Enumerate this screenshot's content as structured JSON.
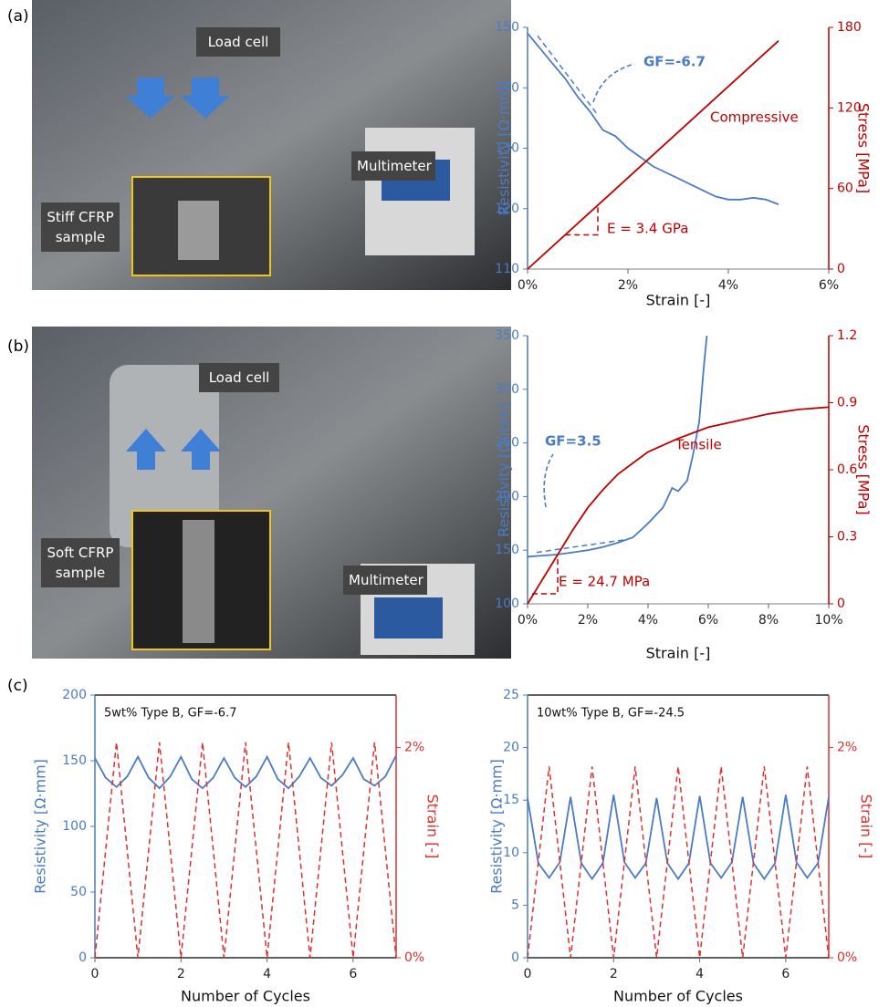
{
  "panels": {
    "labels": [
      "(a)",
      "(b)",
      "(c)"
    ],
    "photo_a": {
      "load_cell": "Load cell",
      "multimeter": "Multimeter",
      "sample": "Stiff CFRP sample"
    },
    "photo_b": {
      "load_cell": "Load cell",
      "multimeter": "Multimeter",
      "sample": "Soft CFRP sample"
    }
  },
  "chart_data": [
    {
      "type": "line",
      "xlabel": "Strain [-]",
      "ylabel": "Resistivity [Ω·mm]",
      "y2label": "Stress [MPa]",
      "xlim": [
        0,
        6
      ],
      "xticks": [
        {
          "value": 0,
          "label": "0%"
        },
        {
          "value": 2,
          "label": "2%"
        },
        {
          "value": 4,
          "label": "4%"
        },
        {
          "value": 6,
          "label": "6%"
        }
      ],
      "ylim": [
        110,
        150
      ],
      "yticks": [
        110,
        120,
        130,
        140,
        150
      ],
      "y2lim": [
        0,
        180
      ],
      "y2ticks": [
        0,
        60,
        120,
        180
      ],
      "annotations": [
        "GF=-6.7",
        "Compressive",
        "E = 3.4 GPa"
      ],
      "series": [
        {
          "color": "#4a7bc4",
          "axis": "y",
          "x": [
            0,
            0.25,
            0.5,
            0.75,
            1,
            1.25,
            1.5,
            1.75,
            2,
            2.25,
            2.5,
            2.75,
            3,
            3.25,
            3.5,
            3.75,
            4,
            4.25,
            4.5,
            4.75,
            5
          ],
          "values": [
            149,
            146.5,
            144,
            141.5,
            138.5,
            136,
            133,
            132,
            130,
            128.5,
            127,
            126,
            125,
            124,
            123,
            122,
            121.5,
            121.5,
            121.8,
            121.5,
            120.7
          ]
        },
        {
          "color": "#c00000",
          "axis": "y2",
          "x": [
            0,
            5
          ],
          "values": [
            0,
            170
          ]
        },
        {
          "color": "#4a7bc4",
          "axis": "y",
          "dash": true,
          "x": [
            0.2,
            1.4
          ],
          "values": [
            148.6,
            135.5
          ]
        },
        {
          "color": "#c00000",
          "axis": "y2",
          "dash": true,
          "x": [
            0.75,
            1.4,
            1.4
          ],
          "values": [
            25.5,
            25.5,
            47.6
          ]
        }
      ]
    },
    {
      "type": "line",
      "xlabel": "Strain [-]",
      "ylabel": "Resistivity [Ω·mm]",
      "y2label": "Stress [MPa]",
      "xlim": [
        0,
        10
      ],
      "xticks": [
        {
          "value": 0,
          "label": "0%"
        },
        {
          "value": 2,
          "label": "2%"
        },
        {
          "value": 4,
          "label": "4%"
        },
        {
          "value": 6,
          "label": "6%"
        },
        {
          "value": 8,
          "label": "8%"
        },
        {
          "value": 10,
          "label": "10%"
        }
      ],
      "ylim": [
        100,
        350
      ],
      "yticks": [
        100,
        150,
        200,
        250,
        300,
        350
      ],
      "y2lim": [
        0,
        1.2
      ],
      "y2ticks": [
        0,
        0.3,
        0.6,
        0.9,
        1.2
      ],
      "annotations": [
        "GF=3.5",
        "Tensile",
        "E = 24.7 MPa"
      ],
      "series": [
        {
          "color": "#4a7bc4",
          "axis": "y",
          "x": [
            0,
            0.5,
            1,
            1.5,
            2,
            2.5,
            3,
            3.5,
            4,
            4.5,
            4.8,
            5,
            5.3,
            5.5,
            5.7,
            5.85,
            5.95
          ],
          "values": [
            144,
            145,
            146,
            148,
            150,
            153,
            157,
            162,
            175,
            190,
            208,
            205,
            215,
            240,
            270,
            320,
            350
          ]
        },
        {
          "color": "#c00000",
          "axis": "y2",
          "x": [
            0,
            0.5,
            1,
            1.5,
            2,
            2.5,
            3,
            3.5,
            4,
            5,
            6,
            7,
            8,
            9,
            10
          ],
          "values": [
            0,
            0.11,
            0.22,
            0.33,
            0.43,
            0.51,
            0.58,
            0.63,
            0.68,
            0.74,
            0.79,
            0.82,
            0.85,
            0.87,
            0.88
          ]
        },
        {
          "color": "#4a7bc4",
          "axis": "y",
          "dash": true,
          "x": [
            0.3,
            3.3
          ],
          "values": [
            148,
            160
          ]
        },
        {
          "color": "#c00000",
          "axis": "y2",
          "dash": true,
          "x": [
            0.15,
            1,
            1
          ],
          "values": [
            0.045,
            0.045,
            0.21
          ]
        }
      ]
    },
    {
      "type": "line",
      "title": "5wt% Type B, GF=-6.7",
      "xlabel": "Number of Cycles",
      "ylabel": "Resistivity [Ω·mm]",
      "y2label": "Strain [-]",
      "xlim": [
        0,
        7
      ],
      "xticks": [
        0,
        2,
        4,
        6
      ],
      "ylim": [
        0,
        200
      ],
      "yticks": [
        0,
        50,
        100,
        150,
        200
      ],
      "y2lim": [
        0,
        2.5
      ],
      "y2ticks": [
        {
          "value": 0,
          "label": "0%"
        },
        {
          "value": 2,
          "label": "2%"
        }
      ],
      "series": [
        {
          "color": "#4a7bc4",
          "axis": "y",
          "x": [
            0,
            0.25,
            0.5,
            0.75,
            1,
            1.25,
            1.5,
            1.75,
            2,
            2.25,
            2.5,
            2.75,
            3,
            3.25,
            3.5,
            3.75,
            4,
            4.25,
            4.5,
            4.75,
            5,
            5.25,
            5.5,
            5.75,
            6,
            6.25,
            6.5,
            6.75,
            7
          ],
          "values": [
            152,
            137,
            130,
            138,
            153,
            137,
            129,
            138,
            153,
            136,
            129,
            137,
            152,
            137,
            130,
            138,
            153,
            136,
            129,
            138,
            152,
            137,
            131,
            139,
            152,
            136,
            131,
            138,
            154
          ]
        },
        {
          "color": "#e03030",
          "axis": "y2",
          "dash": true,
          "x": [
            0,
            0.5,
            1,
            1.5,
            2,
            2.5,
            3,
            3.5,
            4,
            4.5,
            5,
            5.5,
            6,
            6.5,
            7
          ],
          "values": [
            0,
            2.05,
            0,
            2.05,
            0,
            2.05,
            0,
            2.05,
            0,
            2.05,
            0,
            2.05,
            0,
            2.05,
            0
          ]
        }
      ]
    },
    {
      "type": "line",
      "title": "10wt% Type B, GF=-24.5",
      "xlabel": "Number of Cycles",
      "ylabel": "Resistivity [Ω·mm]",
      "y2label": "Strain [-]",
      "xlim": [
        0,
        7
      ],
      "xticks": [
        0,
        2,
        4,
        6
      ],
      "ylim": [
        0,
        25
      ],
      "yticks": [
        0,
        5,
        10,
        15,
        20,
        25
      ],
      "y2lim": [
        0,
        2.5
      ],
      "y2ticks": [
        {
          "value": 0,
          "label": "0%"
        },
        {
          "value": 2,
          "label": "2%"
        }
      ],
      "series": [
        {
          "color": "#4a7bc4",
          "axis": "y",
          "x": [
            0,
            0.25,
            0.5,
            0.75,
            1,
            1.25,
            1.5,
            1.75,
            2,
            2.25,
            2.5,
            2.75,
            3,
            3.25,
            3.5,
            3.75,
            4,
            4.25,
            4.5,
            4.75,
            5,
            5.25,
            5.5,
            5.75,
            6,
            6.25,
            6.5,
            6.75,
            7
          ],
          "values": [
            15.2,
            9,
            7.6,
            9.1,
            15.3,
            9,
            7.5,
            9,
            15.5,
            9.1,
            7.6,
            9,
            15.2,
            9,
            7.5,
            9,
            15.4,
            9,
            7.6,
            9.1,
            15.3,
            9,
            7.5,
            9,
            15.5,
            9.1,
            7.6,
            9,
            15.3
          ]
        },
        {
          "color": "#e03030",
          "axis": "y2",
          "dash": true,
          "x": [
            0,
            0.5,
            1,
            1.5,
            2,
            2.5,
            3,
            3.5,
            4,
            4.5,
            5,
            5.5,
            6,
            6.5,
            7
          ],
          "values": [
            0,
            1.82,
            0,
            1.82,
            0,
            1.82,
            0,
            1.82,
            0,
            1.82,
            0,
            1.82,
            0,
            1.82,
            0
          ]
        }
      ]
    }
  ]
}
